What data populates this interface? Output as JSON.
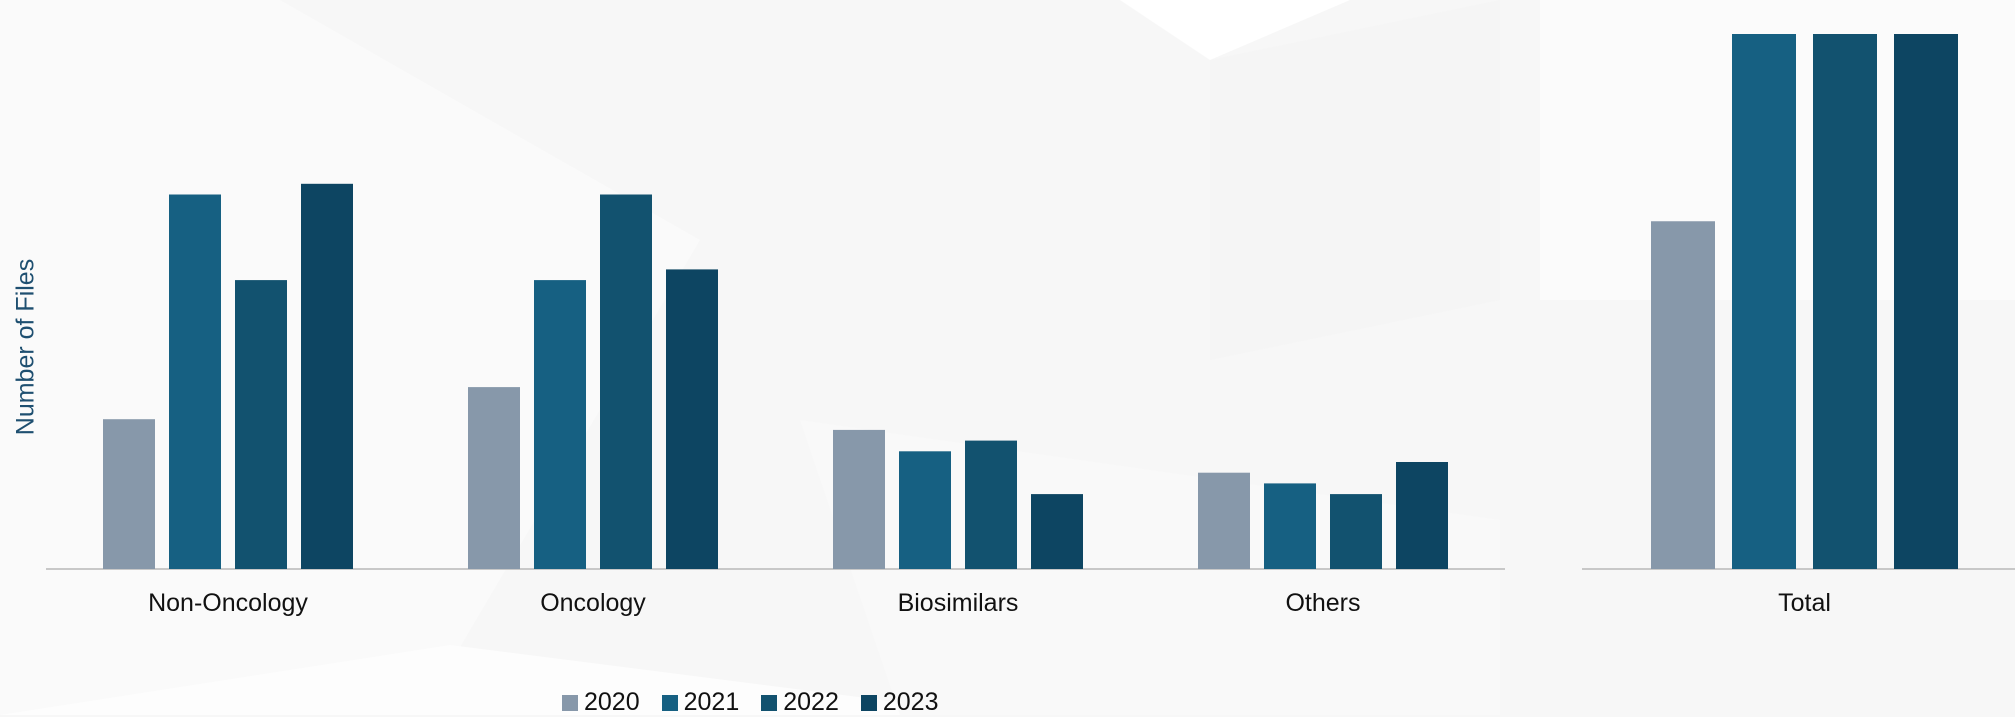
{
  "chart_data": [
    {
      "type": "bar",
      "ylabel": "Number of Files",
      "categories": [
        "Non-Oncology",
        "Oncology",
        "Biosimilars",
        "Others"
      ],
      "ylim": [
        0,
        100
      ],
      "series": [
        {
          "name": "2020",
          "color": "#8798aa",
          "values": [
            28,
            34,
            26,
            18
          ]
        },
        {
          "name": "2021",
          "color": "#166082",
          "values": [
            70,
            54,
            22,
            16
          ]
        },
        {
          "name": "2022",
          "color": "#12526f",
          "values": [
            54,
            70,
            24,
            14
          ]
        },
        {
          "name": "2023",
          "color": "#0d4562",
          "values": [
            72,
            56,
            14,
            20
          ]
        }
      ]
    },
    {
      "type": "bar",
      "categories": [
        "Total"
      ],
      "ylim": [
        0,
        100
      ],
      "series": [
        {
          "name": "2020",
          "color": "#8798aa",
          "values": [
            65
          ]
        },
        {
          "name": "2021",
          "color": "#166082",
          "values": [
            100
          ]
        },
        {
          "name": "2022",
          "color": "#12526f",
          "values": [
            100
          ]
        },
        {
          "name": "2023",
          "color": "#0d4562",
          "values": [
            100
          ]
        }
      ]
    }
  ],
  "legend": {
    "items": [
      {
        "label": "2020",
        "color": "#8798aa"
      },
      {
        "label": "2021",
        "color": "#166082"
      },
      {
        "label": "2022",
        "color": "#12526f"
      },
      {
        "label": "2023",
        "color": "#0d4562"
      }
    ]
  }
}
